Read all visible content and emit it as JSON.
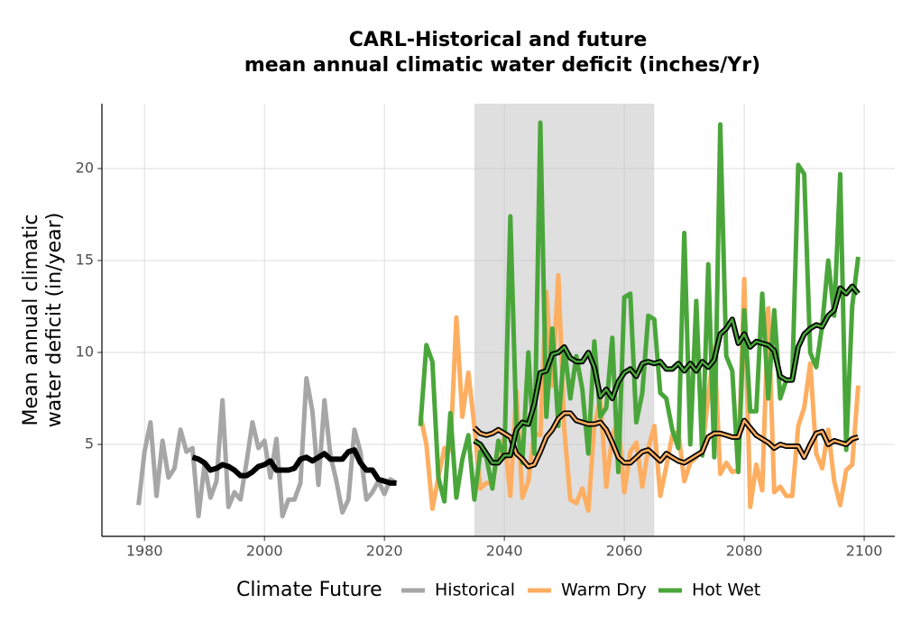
{
  "chart_data": {
    "type": "line",
    "title": [
      "CARL-Historical and future",
      "mean annual climatic water deficit (inches/Yr)"
    ],
    "ylabel": [
      "Mean annual climatic",
      "water deficit (in/year)"
    ],
    "legend_title": "Climate Future",
    "legend_position": "bottom",
    "grid": true,
    "highlight_x": [
      2035,
      2065
    ],
    "xlim": [
      1972.9,
      2105.1
    ],
    "ylim": [
      0,
      23.53
    ],
    "xticks": [
      1980,
      2000,
      2020,
      2040,
      2060,
      2080,
      2100
    ],
    "yticks": [
      5,
      10,
      15,
      20
    ],
    "series": [
      {
        "name": "Historical",
        "color": "#a6a6a6",
        "x": [
          1979,
          1980,
          1981,
          1982,
          1983,
          1984,
          1985,
          1986,
          1987,
          1988,
          1989,
          1990,
          1991,
          1992,
          1993,
          1994,
          1995,
          1996,
          1997,
          1998,
          1999,
          2000,
          2001,
          2002,
          2003,
          2004,
          2005,
          2006,
          2007,
          2008,
          2009,
          2010,
          2011,
          2012,
          2013,
          2014,
          2015,
          2016,
          2017,
          2018,
          2019,
          2020,
          2021,
          2022
        ],
        "values": [
          1.7,
          4.6,
          6.2,
          2.2,
          5.2,
          3.2,
          3.7,
          5.8,
          4.6,
          4.8,
          1.1,
          3.9,
          2.1,
          3.0,
          7.4,
          1.6,
          2.4,
          2.0,
          4.0,
          6.2,
          4.8,
          5.2,
          3.2,
          5.3,
          1.1,
          2.0,
          2.0,
          2.9,
          8.6,
          6.8,
          2.8,
          7.4,
          4.4,
          3.0,
          1.3,
          2.0,
          5.8,
          4.6,
          2.0,
          2.4,
          3.0,
          2.3,
          3.1,
          2.9
        ],
        "trend": {
          "x": [
            1988,
            1989,
            1990,
            1991,
            1992,
            1993,
            1994,
            1995,
            1996,
            1997,
            1998,
            1999,
            2000,
            2001,
            2002,
            2003,
            2004,
            2005,
            2006,
            2007,
            2008,
            2009,
            2010,
            2011,
            2012,
            2013,
            2014,
            2015,
            2016,
            2017,
            2018,
            2019,
            2020,
            2021,
            2022
          ],
          "values": [
            4.3,
            4.2,
            4.0,
            3.6,
            3.7,
            3.9,
            3.8,
            3.6,
            3.3,
            3.3,
            3.5,
            3.8,
            3.9,
            4.1,
            3.6,
            3.6,
            3.6,
            3.7,
            4.2,
            4.3,
            4.1,
            4.3,
            4.5,
            4.2,
            4.2,
            4.2,
            4.6,
            4.7,
            4.0,
            3.6,
            3.6,
            3.1,
            3.0,
            2.9,
            2.9
          ]
        }
      },
      {
        "name": "Warm Dry",
        "color": "#fdae61",
        "x": [
          2026,
          2027,
          2028,
          2029,
          2030,
          2031,
          2032,
          2033,
          2034,
          2035,
          2036,
          2037,
          2038,
          2039,
          2040,
          2041,
          2042,
          2043,
          2044,
          2045,
          2046,
          2047,
          2048,
          2049,
          2050,
          2051,
          2052,
          2053,
          2054,
          2055,
          2056,
          2057,
          2058,
          2059,
          2060,
          2061,
          2062,
          2063,
          2064,
          2065,
          2066,
          2067,
          2068,
          2069,
          2070,
          2071,
          2072,
          2073,
          2074,
          2075,
          2076,
          2077,
          2078,
          2079,
          2080,
          2081,
          2082,
          2083,
          2084,
          2085,
          2086,
          2087,
          2088,
          2089,
          2090,
          2091,
          2092,
          2093,
          2094,
          2095,
          2096,
          2097,
          2098,
          2099
        ],
        "values": [
          6.6,
          5.0,
          1.5,
          3.2,
          4.8,
          4.7,
          11.9,
          6.5,
          8.9,
          6.0,
          2.6,
          2.9,
          2.9,
          4.5,
          5.4,
          2.2,
          7.9,
          2.1,
          3.0,
          5.6,
          5.5,
          13.3,
          8.2,
          14.2,
          5.8,
          2.0,
          1.8,
          2.6,
          1.4,
          6.0,
          7.5,
          2.7,
          5.5,
          6.3,
          2.4,
          4.6,
          5.1,
          2.7,
          4.8,
          6.0,
          2.2,
          3.8,
          5.5,
          5.7,
          3.0,
          4.0,
          4.3,
          4.7,
          7.6,
          10.3,
          3.4,
          4.0,
          3.5,
          3.6,
          14.0,
          1.6,
          3.9,
          2.5,
          12.4,
          2.4,
          2.7,
          2.2,
          2.2,
          6.0,
          7.0,
          9.4,
          4.5,
          3.7,
          5.8,
          3.0,
          1.7,
          3.6,
          3.9,
          8.2
        ],
        "trend": {
          "x": [
            2035,
            2036,
            2037,
            2038,
            2039,
            2040,
            2041,
            2042,
            2043,
            2044,
            2045,
            2046,
            2047,
            2048,
            2049,
            2050,
            2051,
            2052,
            2053,
            2054,
            2055,
            2056,
            2057,
            2058,
            2059,
            2060,
            2061,
            2062,
            2063,
            2064,
            2065,
            2066,
            2067,
            2068,
            2069,
            2070,
            2071,
            2072,
            2073,
            2074,
            2075,
            2076,
            2077,
            2078,
            2079,
            2080,
            2081,
            2082,
            2083,
            2084,
            2085,
            2086,
            2087,
            2088,
            2089,
            2090,
            2091,
            2092,
            2093,
            2094,
            2095,
            2096,
            2097,
            2098,
            2099
          ],
          "values": [
            5.9,
            5.6,
            5.5,
            5.6,
            5.8,
            5.6,
            5.4,
            4.5,
            4.2,
            3.8,
            3.9,
            4.6,
            5.4,
            5.8,
            6.4,
            6.7,
            6.7,
            6.3,
            6.2,
            6.1,
            6.1,
            6.2,
            5.8,
            5.1,
            4.3,
            4.0,
            4.0,
            4.3,
            4.6,
            4.7,
            4.4,
            4.1,
            4.5,
            4.3,
            4.1,
            4.0,
            4.2,
            4.4,
            4.6,
            5.4,
            5.6,
            5.6,
            5.5,
            5.4,
            5.4,
            6.3,
            5.9,
            5.5,
            5.3,
            5.1,
            4.8,
            5.0,
            4.9,
            4.9,
            4.9,
            4.3,
            5.0,
            5.6,
            5.7,
            5.0,
            5.2,
            5.1,
            5.0,
            5.3,
            5.4
          ]
        }
      },
      {
        "name": "Hot Wet",
        "color": "#4aa63a",
        "x": [
          2026,
          2027,
          2028,
          2029,
          2030,
          2031,
          2032,
          2033,
          2034,
          2035,
          2036,
          2037,
          2038,
          2039,
          2040,
          2041,
          2042,
          2043,
          2044,
          2045,
          2046,
          2047,
          2048,
          2049,
          2050,
          2051,
          2052,
          2053,
          2054,
          2055,
          2056,
          2057,
          2058,
          2059,
          2060,
          2061,
          2062,
          2063,
          2064,
          2065,
          2066,
          2067,
          2068,
          2069,
          2070,
          2071,
          2072,
          2073,
          2074,
          2075,
          2076,
          2077,
          2078,
          2079,
          2080,
          2081,
          2082,
          2083,
          2084,
          2085,
          2086,
          2087,
          2088,
          2089,
          2090,
          2091,
          2092,
          2093,
          2094,
          2095,
          2096,
          2097,
          2098,
          2099
        ],
        "values": [
          6.0,
          10.4,
          9.5,
          3.2,
          1.9,
          6.7,
          2.1,
          4.2,
          5.5,
          2.0,
          4.6,
          4.3,
          2.6,
          5.2,
          4.3,
          17.4,
          6.0,
          4.0,
          10.0,
          4.5,
          22.5,
          6.5,
          11.3,
          6.0,
          10.3,
          7.5,
          9.8,
          8.0,
          4.5,
          10.6,
          6.5,
          7.0,
          10.8,
          3.5,
          13.0,
          13.2,
          6.2,
          7.8,
          12.0,
          11.8,
          7.8,
          7.5,
          5.8,
          4.8,
          16.5,
          5.0,
          12.8,
          4.4,
          14.8,
          4.3,
          22.4,
          9.8,
          9.0,
          3.5,
          12.3,
          6.8,
          6.8,
          13.2,
          7.5,
          12.3,
          7.5,
          8.5,
          8.5,
          20.2,
          19.7,
          10.0,
          9.2,
          11.5,
          15.0,
          12.0,
          19.7,
          4.7,
          12.5,
          15.2
        ],
        "trend": {
          "x": [
            2035,
            2036,
            2037,
            2038,
            2039,
            2040,
            2041,
            2042,
            2043,
            2044,
            2045,
            2046,
            2047,
            2048,
            2049,
            2050,
            2051,
            2052,
            2053,
            2054,
            2055,
            2056,
            2057,
            2058,
            2059,
            2060,
            2061,
            2062,
            2063,
            2064,
            2065,
            2066,
            2067,
            2068,
            2069,
            2070,
            2071,
            2072,
            2073,
            2074,
            2075,
            2076,
            2077,
            2078,
            2079,
            2080,
            2081,
            2082,
            2083,
            2084,
            2085,
            2086,
            2087,
            2088,
            2089,
            2090,
            2091,
            2092,
            2093,
            2094,
            2095,
            2096,
            2097,
            2098,
            2099
          ],
          "values": [
            5.2,
            5.0,
            4.5,
            4.0,
            4.0,
            4.4,
            4.4,
            5.8,
            6.2,
            6.1,
            7.2,
            8.9,
            9.0,
            9.9,
            10.0,
            10.3,
            9.7,
            9.5,
            9.5,
            10.0,
            9.2,
            7.6,
            8.0,
            7.5,
            8.4,
            8.9,
            9.1,
            8.7,
            9.4,
            9.5,
            9.4,
            9.5,
            9.1,
            9.1,
            9.4,
            9.0,
            9.4,
            9.0,
            9.5,
            9.2,
            9.6,
            11.0,
            11.3,
            11.8,
            10.5,
            11.0,
            10.3,
            10.6,
            10.5,
            10.4,
            10.1,
            8.7,
            8.5,
            8.5,
            10.3,
            11.0,
            11.3,
            11.5,
            11.4,
            12.0,
            12.3,
            13.5,
            13.2,
            13.6,
            13.2
          ]
        }
      }
    ]
  }
}
